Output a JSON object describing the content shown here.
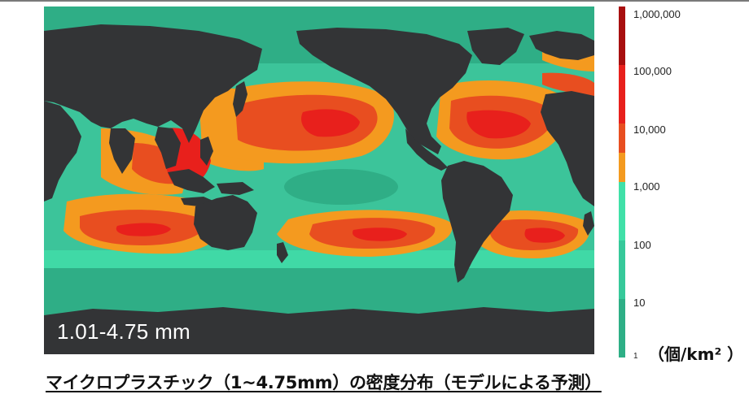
{
  "map": {
    "size_label": "1.01-4.75 mm"
  },
  "legend": {
    "labels": [
      "1,000,000",
      "100,000",
      "10,000",
      "1,000",
      "100",
      "10",
      "1"
    ],
    "unit": "（個/km² ）",
    "colors": {
      "band_1e5_1e6": "#a80f0f",
      "band_1e4_1e5": "#e8201c",
      "band_1e3_1e4": "#e84e20",
      "band_1e2_1e3": "#f49a1f",
      "band_10_1e2_top": "#40e0a8",
      "band_10_1e2": "#36c99a",
      "band_1_10": "#2eaf86",
      "land": "#333436"
    }
  },
  "caption": "マイクロプラスチック（1~4.75mm）の密度分布（モデルによる予測）"
}
